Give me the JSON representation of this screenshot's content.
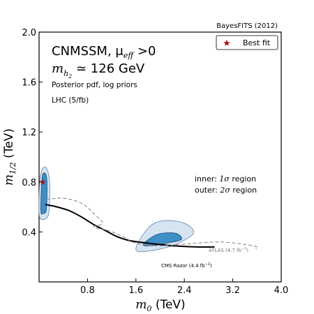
{
  "chart_data": {
    "type": "contour",
    "top_label": "BayesFITS (2012)",
    "title_line1": "CNMSSM, μ",
    "title_line1_sub": "eff",
    "title_line1_tail": " >0",
    "title_line2": "m",
    "title_line2_sub": "h",
    "title_line2_subsub": "2",
    "title_line2_tail": " ≃ 126 GeV",
    "info_line1": "Posterior pdf, log priors",
    "info_line2": "LHC (5/fb)",
    "xlabel": "m",
    "xlabel_sub": "0",
    "xlabel_unit": " (TeV)",
    "ylabel": "m",
    "ylabel_sub": "1/2",
    "ylabel_unit": " (TeV)",
    "xlim": [
      0.0,
      4.0
    ],
    "ylim": [
      0.0,
      2.0
    ],
    "xticks": [
      "0.8",
      "1.6",
      "2.4",
      "3.2",
      "4.0"
    ],
    "xtick_values": [
      0.8,
      1.6,
      2.4,
      3.2,
      4.0
    ],
    "yticks": [
      "0.4",
      "0.8",
      "1.2",
      "1.6",
      "2.0"
    ],
    "ytick_values": [
      0.4,
      0.8,
      1.2,
      1.6,
      2.0
    ],
    "legend": {
      "best_fit": "Best fit",
      "placement": "top-right"
    },
    "best_fit": {
      "x": 0.06,
      "y": 0.8,
      "color": "#a01010"
    },
    "regions_note_inner_prefix": "inner: ",
    "regions_note_inner_sym": "1σ",
    "regions_note_inner_suffix": " region",
    "regions_note_outer_prefix": "outer: ",
    "regions_note_outer_sym": "2σ",
    "regions_note_outer_suffix": " region",
    "regions": [
      {
        "name": "2σ region",
        "fill": "#d6e4f2",
        "edge": "#6d8bb0",
        "polygons": [
          [
            [
              0.0,
              0.55
            ],
            [
              0.02,
              0.84
            ],
            [
              0.1,
              0.92
            ],
            [
              0.17,
              0.82
            ],
            [
              0.16,
              0.55
            ],
            [
              0.06,
              0.5
            ]
          ],
          [
            [
              1.6,
              0.26
            ],
            [
              1.8,
              0.43
            ],
            [
              2.05,
              0.49
            ],
            [
              2.4,
              0.47
            ],
            [
              2.55,
              0.39
            ],
            [
              2.25,
              0.3
            ],
            [
              1.85,
              0.25
            ]
          ]
        ]
      },
      {
        "name": "1σ region",
        "fill": "#3f8fc6",
        "edge": "#1c4f7e",
        "polygons": [
          [
            [
              0.03,
              0.57
            ],
            [
              0.05,
              0.83
            ],
            [
              0.1,
              0.87
            ],
            [
              0.13,
              0.8
            ],
            [
              0.12,
              0.58
            ],
            [
              0.07,
              0.55
            ]
          ],
          [
            [
              1.72,
              0.3
            ],
            [
              1.95,
              0.38
            ],
            [
              2.25,
              0.39
            ],
            [
              2.35,
              0.34
            ],
            [
              2.1,
              0.31
            ],
            [
              1.85,
              0.29
            ]
          ]
        ]
      }
    ],
    "limits": [
      {
        "name": "CMS Razor (4.4 fb⁻¹)",
        "style": "solid",
        "points": [
          [
            0.1,
            0.62
          ],
          [
            0.3,
            0.6
          ],
          [
            0.5,
            0.57
          ],
          [
            0.7,
            0.52
          ],
          [
            0.9,
            0.46
          ],
          [
            1.1,
            0.41
          ],
          [
            1.3,
            0.36
          ],
          [
            1.5,
            0.33
          ],
          [
            1.8,
            0.31
          ],
          [
            2.2,
            0.29
          ],
          [
            2.6,
            0.28
          ],
          [
            2.9,
            0.28
          ]
        ]
      },
      {
        "name": "ATLAS (4.7 fb⁻¹)",
        "style": "dashed",
        "points": [
          [
            0.12,
            0.66
          ],
          [
            0.4,
            0.67
          ],
          [
            0.7,
            0.63
          ],
          [
            0.9,
            0.55
          ],
          [
            1.05,
            0.47
          ],
          [
            0.9,
            0.44
          ],
          [
            1.15,
            0.41
          ],
          [
            1.4,
            0.36
          ],
          [
            1.6,
            0.31
          ],
          [
            2.0,
            0.29
          ],
          [
            2.6,
            0.31
          ],
          [
            3.0,
            0.32
          ],
          [
            3.4,
            0.3
          ],
          [
            3.6,
            0.28
          ],
          [
            3.58,
            0.26
          ]
        ]
      }
    ],
    "limit_labels": {
      "cms_prefix": "CMS Razor (4.4 fb",
      "cms_sup": "−1",
      "cms_suffix": ")",
      "atlas_prefix": "ATLAS (4.7 fb",
      "atlas_sup": "−1",
      "atlas_suffix": ")"
    }
  }
}
